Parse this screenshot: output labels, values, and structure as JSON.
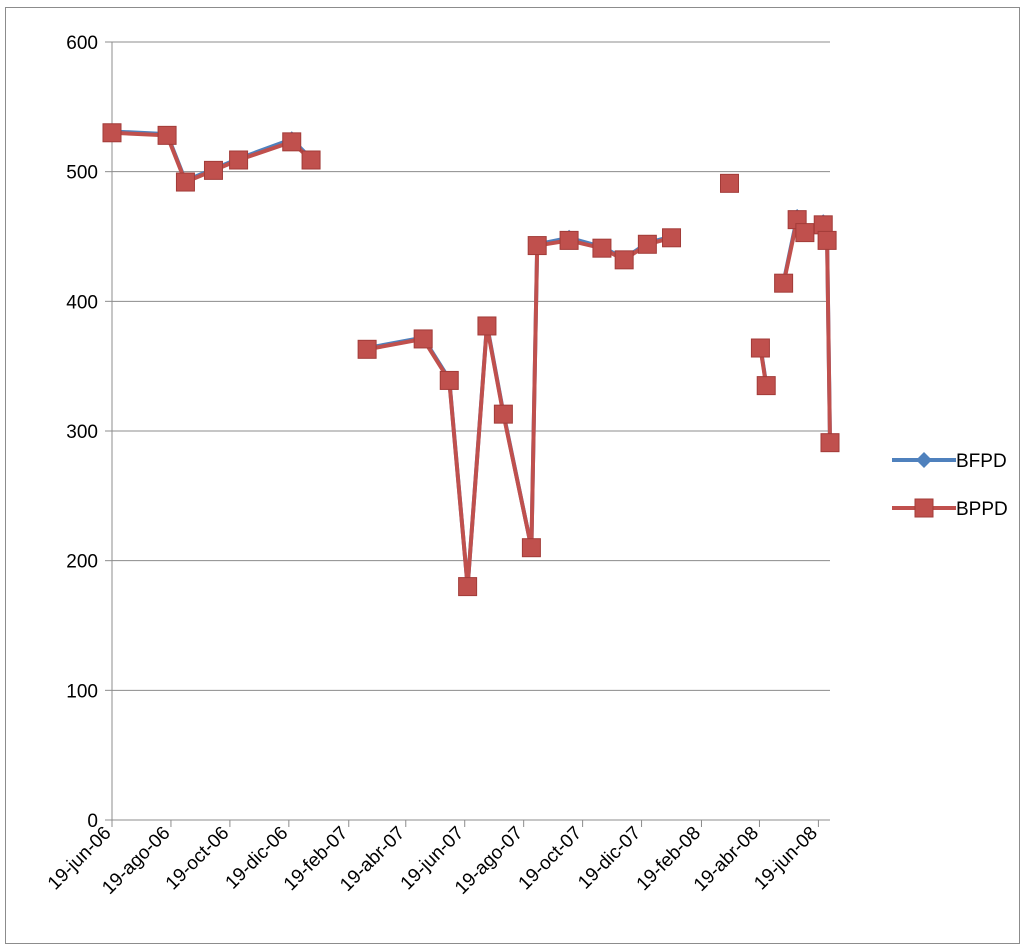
{
  "chart_data": {
    "type": "line",
    "title": "",
    "xlabel": "",
    "ylabel": "",
    "ylim": [
      0,
      600
    ],
    "yticks": [
      0,
      100,
      200,
      300,
      400,
      500,
      600
    ],
    "xlim": [
      "2006-06-19",
      "2008-07-01"
    ],
    "xticks": [
      "19-jun-06",
      "19-ago-06",
      "19-oct-06",
      "19-dic-06",
      "19-feb-07",
      "19-abr-07",
      "19-jun-07",
      "19-ago-07",
      "19-oct-07",
      "19-dic-07",
      "19-feb-08",
      "19-abr-08",
      "19-jun-08"
    ],
    "grid": "horizontal",
    "legend_position": "right",
    "series": [
      {
        "name": "BFPD",
        "color": "#4f81bd",
        "marker": "diamond",
        "points": [
          [
            "2006-06-19",
            531
          ],
          [
            "2006-08-15",
            529
          ],
          [
            "2006-09-03",
            493
          ],
          [
            "2006-10-02",
            502
          ],
          [
            "2006-10-28",
            510
          ],
          [
            "2006-12-22",
            525
          ],
          [
            "2007-01-11",
            510
          ],
          null,
          [
            "2007-03-10",
            364
          ],
          [
            "2007-05-07",
            372
          ],
          [
            "2007-06-03",
            340
          ],
          [
            "2007-06-22",
            180
          ],
          [
            "2007-07-12",
            382
          ],
          [
            "2007-07-29",
            314
          ],
          [
            "2007-08-27",
            210
          ],
          [
            "2007-09-02",
            444
          ],
          [
            "2007-10-05",
            449
          ],
          [
            "2007-11-08",
            442
          ],
          [
            "2007-12-01",
            433
          ],
          [
            "2007-12-25",
            445
          ],
          [
            "2008-01-19",
            450
          ],
          null,
          [
            "2008-03-19",
            492
          ],
          null,
          [
            "2008-04-20",
            365
          ],
          [
            "2008-04-26",
            336
          ],
          null,
          [
            "2008-05-14",
            415
          ],
          [
            "2008-05-28",
            465
          ],
          [
            "2008-06-05",
            454
          ],
          null,
          [
            "2008-06-24",
            461
          ],
          [
            "2008-06-28",
            448
          ],
          [
            "2008-07-01",
            292
          ]
        ]
      },
      {
        "name": "BPPD",
        "color": "#c0504d",
        "marker": "square",
        "points": [
          [
            "2006-06-19",
            530
          ],
          [
            "2006-08-15",
            528
          ],
          [
            "2006-09-03",
            492
          ],
          [
            "2006-10-02",
            501
          ],
          [
            "2006-10-28",
            509
          ],
          [
            "2006-12-22",
            523
          ],
          [
            "2007-01-11",
            509
          ],
          null,
          [
            "2007-03-10",
            363
          ],
          [
            "2007-05-07",
            371
          ],
          [
            "2007-06-03",
            339
          ],
          [
            "2007-06-22",
            180
          ],
          [
            "2007-07-12",
            381
          ],
          [
            "2007-07-29",
            313
          ],
          [
            "2007-08-27",
            210
          ],
          [
            "2007-09-02",
            443
          ],
          [
            "2007-10-05",
            447
          ],
          [
            "2007-11-08",
            441
          ],
          [
            "2007-12-01",
            432
          ],
          [
            "2007-12-25",
            444
          ],
          [
            "2008-01-19",
            449
          ],
          null,
          [
            "2008-03-19",
            491
          ],
          null,
          [
            "2008-04-20",
            364
          ],
          [
            "2008-04-26",
            335
          ],
          null,
          [
            "2008-05-14",
            414
          ],
          [
            "2008-05-28",
            463
          ],
          [
            "2008-06-05",
            453
          ],
          null,
          [
            "2008-06-24",
            459
          ],
          [
            "2008-06-28",
            447
          ],
          [
            "2008-07-01",
            291
          ]
        ]
      }
    ]
  }
}
